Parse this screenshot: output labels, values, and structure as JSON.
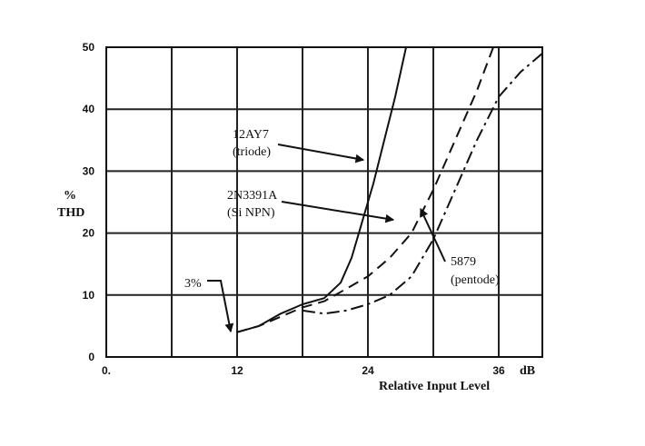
{
  "chart_data": {
    "type": "line",
    "xlabel": "Relative Input Level",
    "x_unit": "dB",
    "ylabel_lines": [
      "%",
      "THD"
    ],
    "xlim": [
      0,
      40
    ],
    "ylim": [
      0,
      50
    ],
    "x_ticks": [
      0,
      6,
      12,
      18,
      24,
      30,
      36
    ],
    "x_tick_labels": [
      "0.",
      "",
      "12",
      "",
      "24",
      "",
      "36"
    ],
    "y_ticks": [
      0,
      10,
      20,
      30,
      40,
      50
    ],
    "y_tick_labels": [
      "0",
      "10",
      "20",
      "30",
      "40",
      "50"
    ],
    "grid": true,
    "series": [
      {
        "name": "12AY7 (triode)",
        "style": "solid",
        "points": [
          [
            12,
            4
          ],
          [
            14,
            5
          ],
          [
            16,
            7
          ],
          [
            18,
            8.5
          ],
          [
            20,
            9.5
          ],
          [
            21.5,
            12
          ],
          [
            22.5,
            16
          ],
          [
            23.5,
            22
          ],
          [
            24.5,
            28
          ],
          [
            25.5,
            35
          ],
          [
            26.5,
            42
          ],
          [
            27.5,
            50
          ]
        ]
      },
      {
        "name": "2N3391A (Si NPN)",
        "style": "dash",
        "points": [
          [
            12,
            4
          ],
          [
            14,
            5
          ],
          [
            16,
            6.5
          ],
          [
            18,
            8
          ],
          [
            20,
            9
          ],
          [
            22,
            11
          ],
          [
            24,
            13
          ],
          [
            26,
            16
          ],
          [
            28,
            20
          ],
          [
            30,
            27
          ],
          [
            32,
            35
          ],
          [
            34,
            43
          ],
          [
            35.5,
            50
          ]
        ]
      },
      {
        "name": "5879 (pentode)",
        "style": "dash-dot",
        "points": [
          [
            18,
            7.5
          ],
          [
            20,
            7
          ],
          [
            22,
            7.5
          ],
          [
            24,
            8.5
          ],
          [
            26,
            10
          ],
          [
            28,
            13
          ],
          [
            30,
            19
          ],
          [
            32,
            27
          ],
          [
            34,
            35
          ],
          [
            36,
            42
          ],
          [
            38,
            46
          ],
          [
            40,
            49
          ],
          [
            41,
            50
          ]
        ]
      }
    ],
    "annotations": [
      {
        "lines": [
          "12AY7",
          "(triode)"
        ],
        "target_series": 0
      },
      {
        "lines": [
          "2N3391A",
          "(Si NPN)"
        ],
        "target_series": 1
      },
      {
        "lines": [
          "5879",
          "(pentode)"
        ],
        "target_series": 2
      },
      {
        "lines": [
          "3%"
        ],
        "target_series": -1
      }
    ]
  }
}
